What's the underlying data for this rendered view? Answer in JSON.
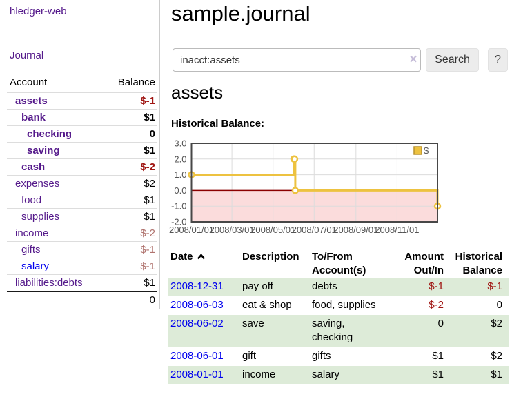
{
  "app": {
    "brand": "hledger-web",
    "nav_journal": "Journal"
  },
  "sidebar": {
    "table": {
      "headers": [
        "Account",
        "Balance"
      ],
      "accounts": [
        {
          "name": "assets",
          "depth": 0,
          "bold": true,
          "balance": "$-1"
        },
        {
          "name": "bank",
          "depth": 1,
          "bold": true,
          "balance": "$1"
        },
        {
          "name": "checking",
          "depth": 2,
          "bold": true,
          "balance": "0"
        },
        {
          "name": "saving",
          "depth": 2,
          "bold": true,
          "balance": "$1"
        },
        {
          "name": "cash",
          "depth": 1,
          "bold": true,
          "balance": "$-2"
        },
        {
          "name": "expenses",
          "depth": 0,
          "bold": false,
          "balance": "$2"
        },
        {
          "name": "food",
          "depth": 1,
          "bold": false,
          "balance": "$1"
        },
        {
          "name": "supplies",
          "depth": 1,
          "bold": false,
          "balance": "$1"
        },
        {
          "name": "income",
          "depth": 0,
          "bold": false,
          "balance": "$-2",
          "muted": true
        },
        {
          "name": "gifts",
          "depth": 1,
          "bold": false,
          "balance": "$-1",
          "muted": true
        },
        {
          "name": "salary",
          "depth": 1,
          "bold": false,
          "balance": "$-1",
          "muted": true,
          "link_style": "blue"
        },
        {
          "name": "liabilities:debts",
          "depth": 0,
          "bold": false,
          "balance": "$1"
        }
      ],
      "total": "0"
    }
  },
  "main": {
    "title": "sample.journal",
    "search": {
      "value": "inacct:assets",
      "clear_icon": "×",
      "button": "Search",
      "help_button": "?"
    },
    "account_heading": "assets"
  },
  "chart_data": {
    "type": "line",
    "title": "Historical Balance:",
    "step": true,
    "series": [
      {
        "name": "$",
        "points": [
          [
            "2008-01-01",
            1
          ],
          [
            "2008-06-01",
            2
          ],
          [
            "2008-06-02",
            2
          ],
          [
            "2008-06-03",
            0
          ],
          [
            "2008-12-31",
            -1
          ]
        ]
      }
    ],
    "x_ticks": [
      "2008/01/01",
      "2008/03/01",
      "2008/05/01",
      "2008/07/01",
      "2008/09/01",
      "2008/11/01"
    ],
    "y_ticks": [
      "3.0",
      "2.0",
      "1.0",
      "0.0",
      "-1.0",
      "-2.0"
    ],
    "xlim": [
      "2008-01-01",
      "2008-12-31"
    ],
    "ylim": [
      -2,
      3
    ],
    "legend_position": "top-right",
    "grid": true
  },
  "register": {
    "headers": {
      "date": "Date",
      "description": "Description",
      "accounts": "To/From Account(s)",
      "amount": "Amount Out/In",
      "balance": "Historical Balance"
    },
    "rows": [
      {
        "date": "2008-12-31",
        "description": "pay off",
        "accounts": "debts",
        "amount": "$-1",
        "balance": "$-1",
        "shaded": true
      },
      {
        "date": "2008-06-03",
        "description": "eat & shop",
        "accounts": "food, supplies",
        "amount": "$-2",
        "balance": "0",
        "shaded": false
      },
      {
        "date": "2008-06-02",
        "description": "save",
        "accounts": "saving, checking",
        "amount": "0",
        "balance": "$2",
        "shaded": true
      },
      {
        "date": "2008-06-01",
        "description": "gift",
        "accounts": "gifts",
        "amount": "$1",
        "balance": "$2",
        "shaded": false
      },
      {
        "date": "2008-01-01",
        "description": "income",
        "accounts": "salary",
        "amount": "$1",
        "balance": "$1",
        "shaded": true
      }
    ]
  },
  "colors": {
    "link_purple": "#551a8b",
    "link_blue": "#0000ee",
    "negative_strong": "#a01613",
    "negative_faded": "#b0736e",
    "row_shade_green": "#ddebd8",
    "chart_line": "#edc240",
    "chart_line_border": "#b8912c",
    "chart_negative_region": "#fbdcdc",
    "chart_zero_line": "#8b0000",
    "chart_grid": "#dcdcdc",
    "chart_border": "#474747",
    "chart_text": "#545454"
  }
}
